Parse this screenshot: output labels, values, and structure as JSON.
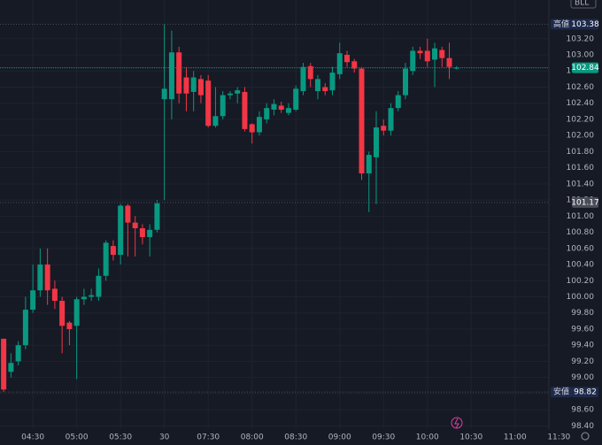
{
  "chart_data": {
    "type": "candlestick",
    "symbol": "BLL",
    "x": [
      0,
      1,
      2,
      3,
      4,
      5,
      6,
      7,
      8,
      9,
      10,
      11,
      12,
      13,
      14,
      15,
      16,
      17,
      18,
      19,
      20,
      21,
      22,
      23,
      24,
      25,
      26,
      27,
      28,
      29,
      30,
      31,
      32,
      33,
      34,
      35,
      36,
      37,
      38,
      39,
      40,
      41,
      42,
      43,
      44,
      45,
      46,
      47,
      48,
      49,
      50,
      51,
      52,
      53,
      54,
      55,
      56,
      57,
      58,
      59,
      60,
      61,
      62
    ],
    "open": [
      99.48,
      99.07,
      99.2,
      99.4,
      99.84,
      100.08,
      100.4,
      100.1,
      99.95,
      99.68,
      99.64,
      99.97,
      100.0,
      100.0,
      100.26,
      100.63,
      100.52,
      101.13,
      100.92,
      100.85,
      100.74,
      100.83,
      102.45,
      102.45,
      103.03,
      102.72,
      102.54,
      102.7,
      102.68,
      102.12,
      102.24,
      102.5,
      102.52,
      102.54,
      102.14,
      102.04,
      102.2,
      102.32,
      102.37,
      102.28,
      102.32,
      102.55,
      102.86,
      102.55,
      102.6,
      102.56,
      102.76,
      103.0,
      102.92,
      102.83,
      101.53,
      101.73,
      102.12,
      102.06,
      102.34,
      102.5,
      102.8,
      103.05,
      103.05,
      102.94,
      103.06,
      102.96,
      102.84
    ],
    "high": [
      99.48,
      99.3,
      99.45,
      100.0,
      100.4,
      100.6,
      100.6,
      100.2,
      100.0,
      99.7,
      100.0,
      100.1,
      100.1,
      100.35,
      100.7,
      100.7,
      101.15,
      101.15,
      101.0,
      100.9,
      100.9,
      101.2,
      103.38,
      103.3,
      103.1,
      102.85,
      102.8,
      102.75,
      102.75,
      102.6,
      102.55,
      102.55,
      102.6,
      102.6,
      102.15,
      102.3,
      102.4,
      102.45,
      102.42,
      102.4,
      102.62,
      102.9,
      102.9,
      102.75,
      102.65,
      102.85,
      103.15,
      103.05,
      102.95,
      102.85,
      101.8,
      102.3,
      102.2,
      102.4,
      102.55,
      102.9,
      103.1,
      103.1,
      103.2,
      103.15,
      103.1,
      103.15,
      102.86
    ],
    "low": [
      98.82,
      99.0,
      99.15,
      99.35,
      99.8,
      100.0,
      99.9,
      99.85,
      99.3,
      99.4,
      98.98,
      99.9,
      99.95,
      99.95,
      100.2,
      100.45,
      100.4,
      100.5,
      100.5,
      100.65,
      100.5,
      100.8,
      101.2,
      102.2,
      102.4,
      102.3,
      102.3,
      102.4,
      102.1,
      102.1,
      102.2,
      102.45,
      102.4,
      102.05,
      101.9,
      102.0,
      102.15,
      102.25,
      102.28,
      102.25,
      102.3,
      102.5,
      102.6,
      102.45,
      102.5,
      102.5,
      102.7,
      102.85,
      102.78,
      101.45,
      101.05,
      101.15,
      102.0,
      102.0,
      102.3,
      102.45,
      102.75,
      102.95,
      102.85,
      102.6,
      102.85,
      102.7,
      102.82
    ],
    "close": [
      98.85,
      99.18,
      99.4,
      99.84,
      100.08,
      100.4,
      100.08,
      99.95,
      99.64,
      99.6,
      99.97,
      100.0,
      100.02,
      100.26,
      100.67,
      100.52,
      101.13,
      100.92,
      100.85,
      100.74,
      100.83,
      101.16,
      102.58,
      103.03,
      102.52,
      102.52,
      102.72,
      102.5,
      102.12,
      102.24,
      102.5,
      102.52,
      102.56,
      102.08,
      102.04,
      102.23,
      102.34,
      102.39,
      102.32,
      102.34,
      102.58,
      102.85,
      102.7,
      102.7,
      102.55,
      102.78,
      103.02,
      102.91,
      102.83,
      101.53,
      101.76,
      102.1,
      102.06,
      102.34,
      102.5,
      102.83,
      103.05,
      103.02,
      102.92,
      103.08,
      102.96,
      102.85,
      102.84
    ],
    "up_color": "#089981",
    "down_color": "#f23645",
    "xlim": [
      -0.5,
      81.9
    ],
    "ylim": [
      98.36,
      103.68
    ],
    "xticks": [
      {
        "value": 4,
        "label": "04:30"
      },
      {
        "value": 10,
        "label": "05:00"
      },
      {
        "value": 16,
        "label": "05:30"
      },
      {
        "value": 22,
        "label": "30"
      },
      {
        "value": 28,
        "label": "07:30"
      },
      {
        "value": 34,
        "label": "08:00"
      },
      {
        "value": 40,
        "label": "08:30"
      },
      {
        "value": 46,
        "label": "09:00"
      },
      {
        "value": 52,
        "label": "09:30"
      },
      {
        "value": 58,
        "label": "10:00"
      },
      {
        "value": 64,
        "label": "10:30"
      },
      {
        "value": 70,
        "label": "11:00"
      },
      {
        "value": 76,
        "label": "11:30"
      }
    ],
    "yticks": [
      {
        "value": 103.2,
        "label": "103.20"
      },
      {
        "value": 103.0,
        "label": "103.00"
      },
      {
        "value": 102.8,
        "label": "102.80"
      },
      {
        "value": 102.6,
        "label": "102.60"
      },
      {
        "value": 102.4,
        "label": "102.40"
      },
      {
        "value": 102.2,
        "label": "102.20"
      },
      {
        "value": 102.0,
        "label": "102.00"
      },
      {
        "value": 101.8,
        "label": "101.80"
      },
      {
        "value": 101.6,
        "label": "101.60"
      },
      {
        "value": 101.4,
        "label": "101.40"
      },
      {
        "value": 101.2,
        "label": "101.20"
      },
      {
        "value": 101.0,
        "label": "101.00"
      },
      {
        "value": 100.8,
        "label": "100.80"
      },
      {
        "value": 100.6,
        "label": "100.60"
      },
      {
        "value": 100.4,
        "label": "100.40"
      },
      {
        "value": 100.2,
        "label": "100.20"
      },
      {
        "value": 100.0,
        "label": "100.00"
      },
      {
        "value": 99.8,
        "label": "99.80"
      },
      {
        "value": 99.6,
        "label": "99.60"
      },
      {
        "value": 99.4,
        "label": "99.40"
      },
      {
        "value": 99.2,
        "label": "99.20"
      },
      {
        "value": 99.0,
        "label": "99.00"
      },
      {
        "value": 98.8,
        "label": "98.80"
      },
      {
        "value": 98.6,
        "label": "98.60"
      },
      {
        "value": 98.4,
        "label": "98.40"
      }
    ],
    "grid": true,
    "high_marker": {
      "label": "高値",
      "value": 103.38
    },
    "low_marker": {
      "label": "安値",
      "value": 98.82
    },
    "last_price": {
      "value": 102.84,
      "color": "#089981"
    },
    "ref_price": {
      "value": 101.17,
      "color": "#4a4d57"
    }
  }
}
